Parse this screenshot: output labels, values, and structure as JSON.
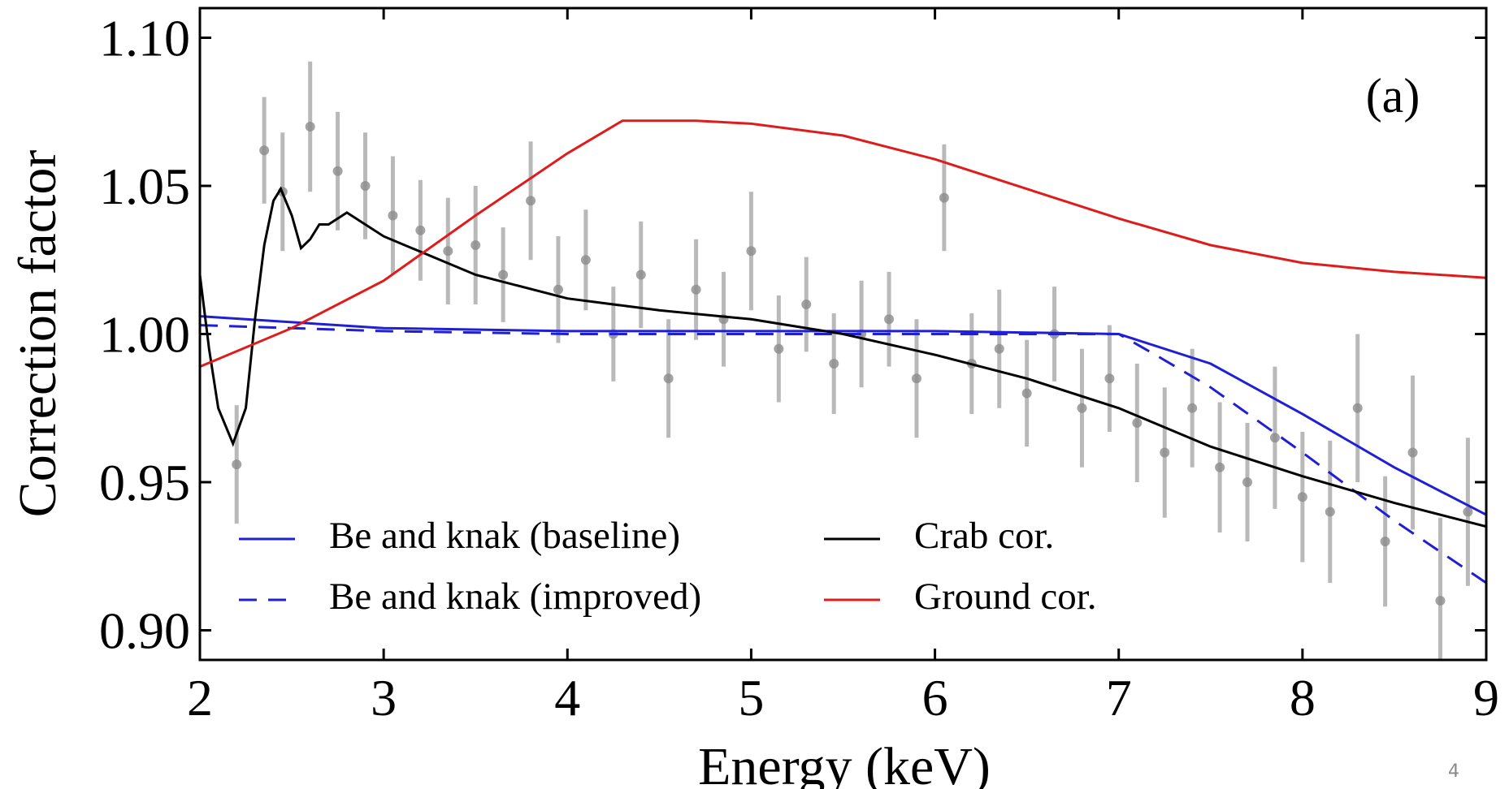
{
  "chart_data": {
    "type": "line",
    "xlabel": "Energy (keV)",
    "ylabel": "Correction factor",
    "annotation": "(a)",
    "page_number": "4",
    "xlim": [
      2,
      9
    ],
    "ylim": [
      0.89,
      1.11
    ],
    "xticks": [
      2,
      3,
      4,
      5,
      6,
      7,
      8,
      9
    ],
    "yticks": [
      {
        "value": 0.9,
        "label": "0.90"
      },
      {
        "value": 0.95,
        "label": "0.95"
      },
      {
        "value": 1.0,
        "label": "1.00"
      },
      {
        "value": 1.05,
        "label": "1.05"
      },
      {
        "value": 1.1,
        "label": "1.10"
      }
    ],
    "legend": "lower left",
    "points": {
      "color": "#8c8c8c",
      "x": [
        2.2,
        2.35,
        2.45,
        2.6,
        2.75,
        2.9,
        3.05,
        3.2,
        3.35,
        3.5,
        3.65,
        3.8,
        3.95,
        4.1,
        4.25,
        4.4,
        4.55,
        4.7,
        4.85,
        5.0,
        5.15,
        5.3,
        5.45,
        5.6,
        5.75,
        5.9,
        6.05,
        6.2,
        6.35,
        6.5,
        6.65,
        6.8,
        6.95,
        7.1,
        7.25,
        7.4,
        7.55,
        7.7,
        7.85,
        8.0,
        8.15,
        8.3,
        8.45,
        8.6,
        8.75,
        8.9
      ],
      "values": [
        0.956,
        1.062,
        1.048,
        1.07,
        1.055,
        1.05,
        1.04,
        1.035,
        1.028,
        1.03,
        1.02,
        1.045,
        1.015,
        1.025,
        1.0,
        1.02,
        0.985,
        1.015,
        1.005,
        1.028,
        0.995,
        1.01,
        0.99,
        1.0,
        1.005,
        0.985,
        1.046,
        0.99,
        0.995,
        0.98,
        1.0,
        0.975,
        0.985,
        0.97,
        0.96,
        0.975,
        0.955,
        0.95,
        0.965,
        0.945,
        0.94,
        0.975,
        0.93,
        0.96,
        0.91,
        0.94
      ],
      "errors": [
        0.02,
        0.018,
        0.02,
        0.022,
        0.02,
        0.018,
        0.02,
        0.017,
        0.018,
        0.02,
        0.016,
        0.02,
        0.018,
        0.017,
        0.016,
        0.018,
        0.02,
        0.017,
        0.016,
        0.02,
        0.018,
        0.016,
        0.017,
        0.018,
        0.016,
        0.02,
        0.018,
        0.017,
        0.02,
        0.018,
        0.016,
        0.02,
        0.018,
        0.02,
        0.022,
        0.02,
        0.022,
        0.02,
        0.024,
        0.022,
        0.024,
        0.025,
        0.022,
        0.026,
        0.028,
        0.025
      ]
    },
    "series": [
      {
        "name": "Be and knak (baseline)",
        "color": "#1f1fd6",
        "style": "solid",
        "x": [
          2,
          3,
          4,
          5,
          6,
          7,
          7.5,
          8,
          8.5,
          9
        ],
        "values": [
          1.006,
          1.002,
          1.001,
          1.001,
          1.001,
          1.0,
          0.99,
          0.973,
          0.955,
          0.939
        ]
      },
      {
        "name": "Be and knak (improved)",
        "color": "#1f1fd6",
        "style": "dashed",
        "x": [
          2,
          3,
          4,
          5,
          6,
          7,
          7.2,
          7.5,
          8,
          8.5,
          9
        ],
        "values": [
          1.003,
          1.001,
          1.0,
          1.0,
          1.0,
          1.0,
          0.993,
          0.982,
          0.96,
          0.937,
          0.916
        ]
      },
      {
        "name": "Crab cor.",
        "color": "#000000",
        "style": "solid",
        "x": [
          2,
          2.05,
          2.1,
          2.18,
          2.25,
          2.3,
          2.35,
          2.4,
          2.44,
          2.5,
          2.55,
          2.6,
          2.65,
          2.7,
          2.8,
          2.9,
          3,
          3.5,
          4,
          4.5,
          5,
          5.5,
          6,
          6.5,
          7,
          7.5,
          8,
          8.5,
          9
        ],
        "values": [
          1.02,
          0.995,
          0.975,
          0.963,
          0.975,
          1.005,
          1.03,
          1.045,
          1.049,
          1.04,
          1.029,
          1.032,
          1.037,
          1.037,
          1.041,
          1.037,
          1.033,
          1.02,
          1.012,
          1.008,
          1.005,
          1.0,
          0.993,
          0.985,
          0.975,
          0.962,
          0.952,
          0.943,
          0.935
        ]
      },
      {
        "name": "Ground cor.",
        "color": "#e01b1b",
        "style": "solid",
        "x": [
          2,
          2.5,
          3,
          3.5,
          4,
          4.3,
          4.7,
          5,
          5.5,
          6,
          6.5,
          7,
          7.5,
          8,
          8.5,
          9
        ],
        "values": [
          0.989,
          1.002,
          1.018,
          1.04,
          1.061,
          1.072,
          1.072,
          1.071,
          1.067,
          1.059,
          1.049,
          1.039,
          1.03,
          1.024,
          1.021,
          1.019
        ]
      }
    ]
  }
}
